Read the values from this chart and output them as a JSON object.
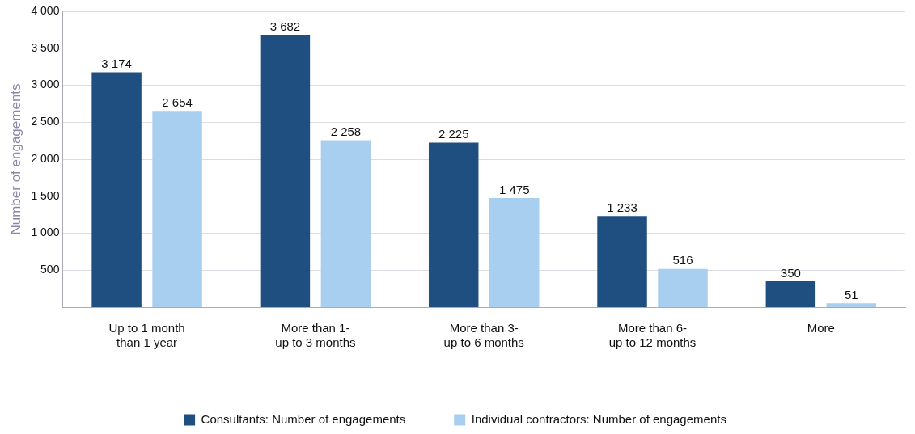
{
  "chart_data": {
    "type": "bar",
    "ylabel": "Number of engagements",
    "categories": [
      "Up to 1 month\nthan 1 year",
      "More than 1-\nup to 3 months",
      "More than 3-\nup to 6 months",
      "More than 6-\nup to 12 months",
      "More"
    ],
    "series": [
      {
        "name": "Consultants: Number of engagements",
        "color": "#1f4f80",
        "values": [
          3174,
          3682,
          2225,
          1233,
          350
        ],
        "value_labels": [
          "3 174",
          "3 682",
          "2 225",
          "1 233",
          "350"
        ]
      },
      {
        "name": "Individual contractors: Number of engagements",
        "color": "#a9cff0",
        "values": [
          2654,
          2258,
          1475,
          516,
          51
        ],
        "value_labels": [
          "2 654",
          "2 258",
          "1 475",
          "516",
          "51"
        ]
      }
    ],
    "ylim": [
      0,
      4000
    ],
    "yticks": [
      {
        "value": 500,
        "label": "500"
      },
      {
        "value": 1000,
        "label": "1 000"
      },
      {
        "value": 1500,
        "label": "1 500"
      },
      {
        "value": 2000,
        "label": "2 000"
      },
      {
        "value": 2500,
        "label": "2 500"
      },
      {
        "value": 3000,
        "label": "3 000"
      },
      {
        "value": 3500,
        "label": "3 500"
      },
      {
        "value": 4000,
        "label": "4 000"
      }
    ],
    "grid": "y",
    "legend": "bottom"
  }
}
